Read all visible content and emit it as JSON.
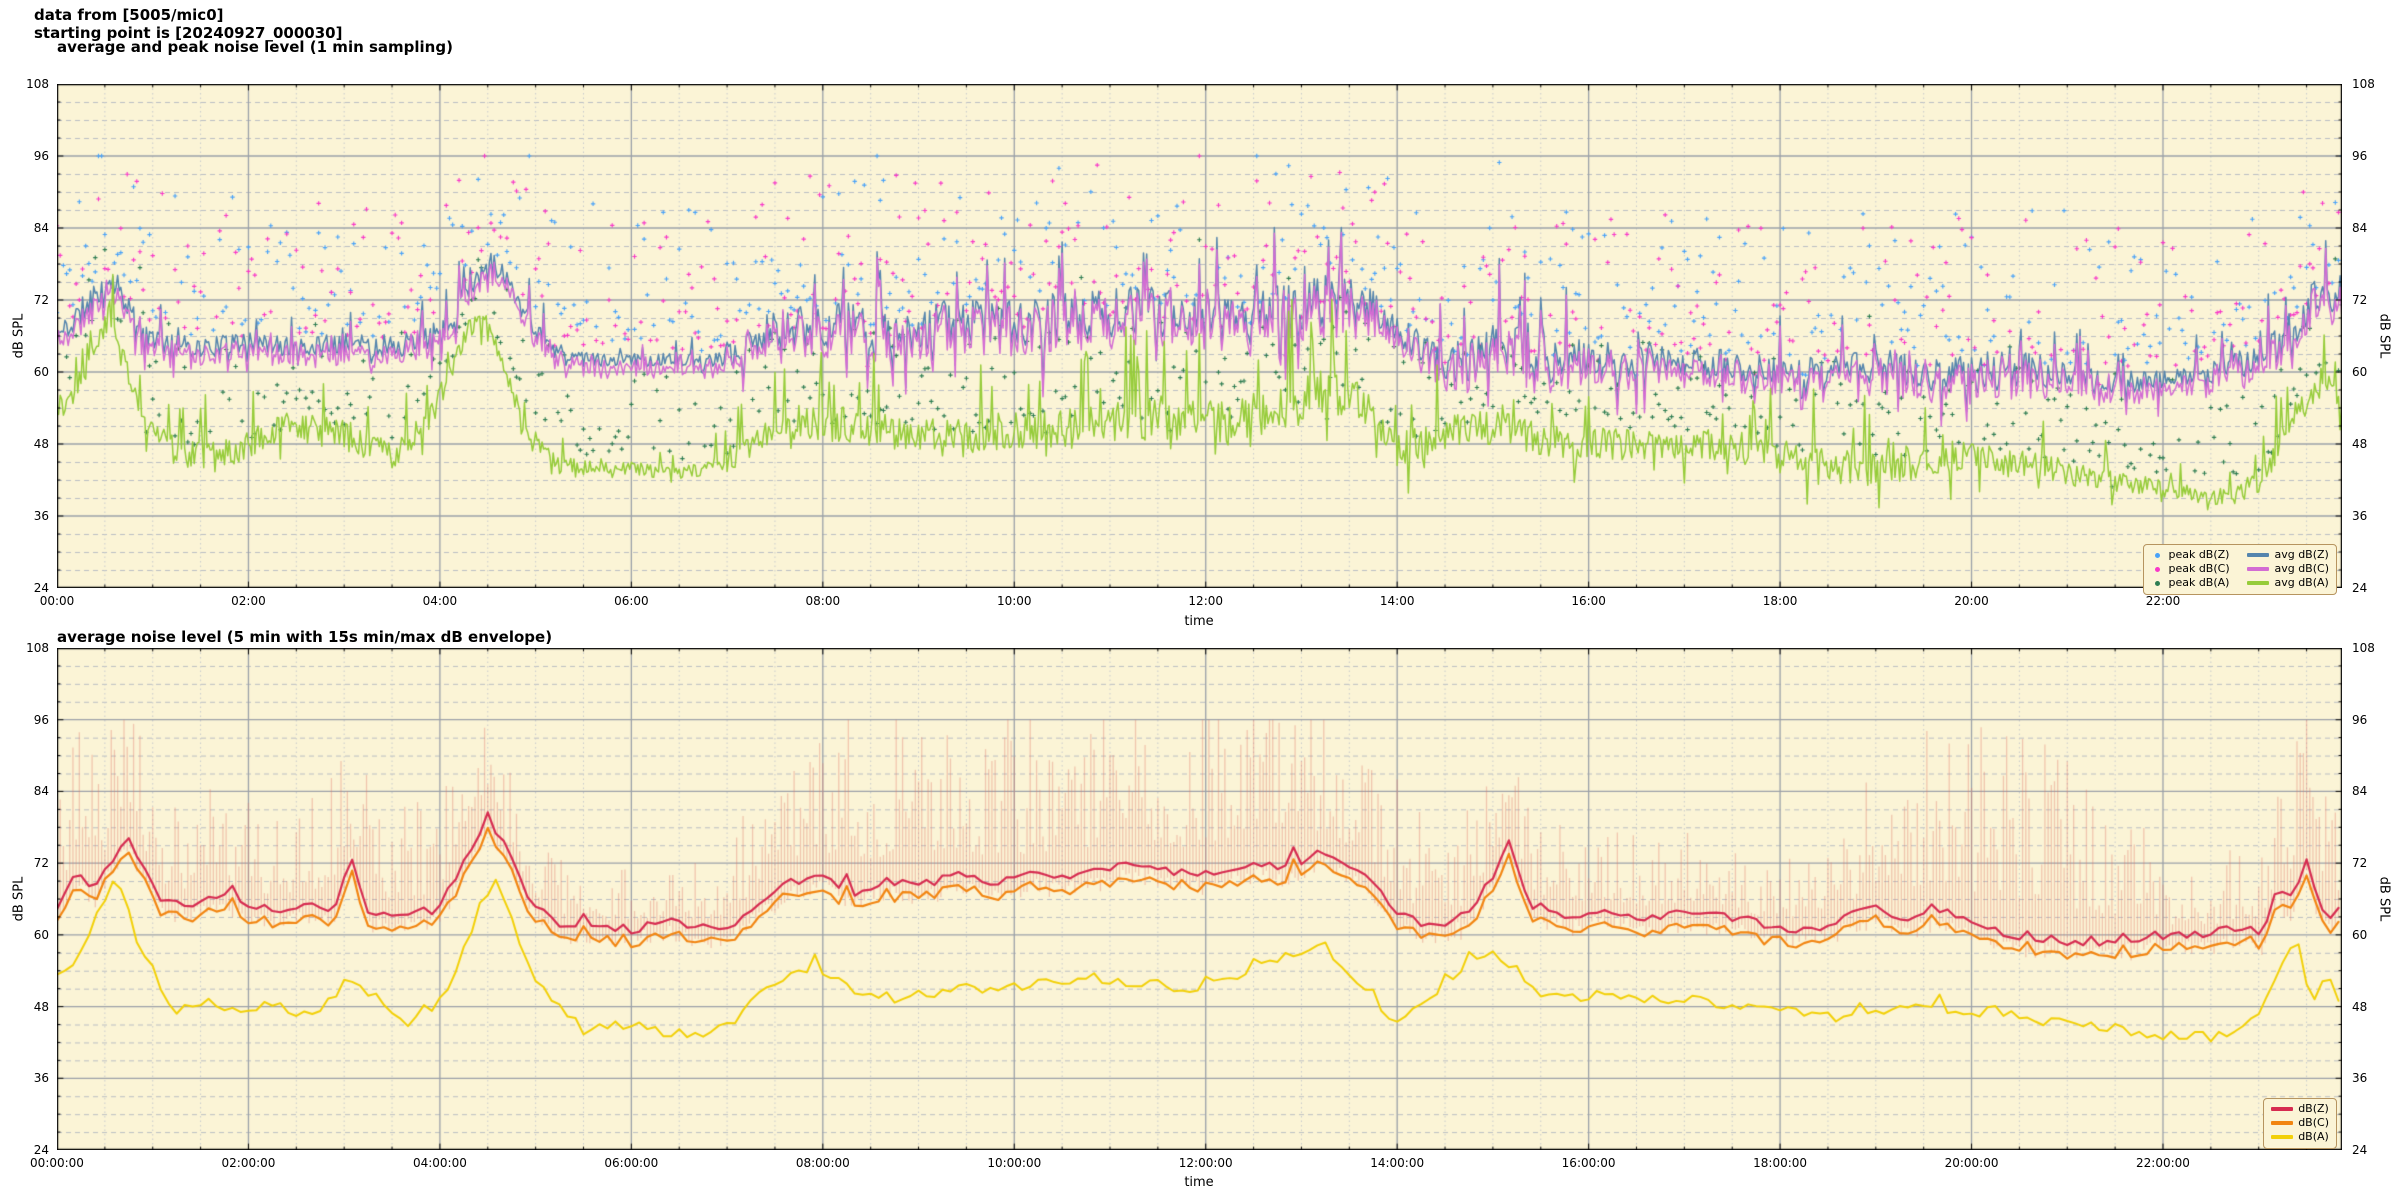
{
  "header": {
    "line1": "data from [5005/mic0]",
    "line2": "starting point is [20240927_000030]"
  },
  "colors": {
    "page_bg": "#ffffff",
    "plot_bg": "#fbf4d6",
    "grid_major": "#9aa0a8",
    "grid_minor": "#b9bdc2",
    "grid_minor_v": "#c6c9cc",
    "axis": "#000000",
    "legend_border": "#b6945f",
    "peak_z": "#49a2f8",
    "peak_c": "#f838c8",
    "peak_a": "#2e7d52",
    "avg_z": "#5585ad",
    "avg_c": "#d36cd3",
    "avg_a": "#96cc3a",
    "line2_z": "#d62b50",
    "line2_c": "#f28511",
    "line2_a": "#f2d008",
    "envelope": "#e07868"
  },
  "charts": [
    {
      "title": "average and peak noise level (1 min sampling)",
      "xlabel": "time",
      "ylabel_left": "dB SPL",
      "ylabel_right": "dB SPL",
      "xticks": [
        "00:00",
        "02:00",
        "04:00",
        "06:00",
        "08:00",
        "10:00",
        "12:00",
        "14:00",
        "16:00",
        "18:00",
        "20:00",
        "22:00"
      ],
      "yticks": [
        "24",
        "36",
        "48",
        "60",
        "72",
        "84",
        "96",
        "108"
      ],
      "legend_left": [
        {
          "label": "peak dB(Z)",
          "color_key": "peak_z"
        },
        {
          "label": "peak dB(C)",
          "color_key": "peak_c"
        },
        {
          "label": "peak dB(A)",
          "color_key": "peak_a"
        }
      ],
      "legend_right": [
        {
          "label": "avg dB(Z)",
          "color_key": "avg_z"
        },
        {
          "label": "avg dB(C)",
          "color_key": "avg_c"
        },
        {
          "label": "avg dB(A)",
          "color_key": "avg_a"
        }
      ]
    },
    {
      "title": "average noise level (5 min with 15s min/max dB envelope)",
      "xlabel": "time",
      "ylabel_left": "dB SPL",
      "ylabel_right": "dB SPL",
      "xticks": [
        "00:00:00",
        "02:00:00",
        "04:00:00",
        "06:00:00",
        "08:00:00",
        "10:00:00",
        "12:00:00",
        "14:00:00",
        "16:00:00",
        "18:00:00",
        "20:00:00",
        "22:00:00"
      ],
      "yticks": [
        "24",
        "36",
        "48",
        "60",
        "72",
        "84",
        "96",
        "108"
      ],
      "legend": [
        {
          "label": "dB(Z)",
          "color_key": "line2_z"
        },
        {
          "label": "dB(C)",
          "color_key": "line2_c"
        },
        {
          "label": "dB(A)",
          "color_key": "line2_a"
        }
      ]
    }
  ],
  "chart_data": [
    {
      "type": "line",
      "title": "average and peak noise level (1 min sampling)",
      "xlabel": "time",
      "ylabel": "dB SPL",
      "xlim_hours": [
        0,
        23.87
      ],
      "ylim": [
        24,
        108
      ],
      "ytick_values": [
        24,
        36,
        48,
        60,
        72,
        84,
        96,
        108
      ],
      "yminor_step": 3,
      "xtick_step_hours": 2,
      "xminor_step_hours": 0.5,
      "sampling_minutes": 1,
      "series": [
        {
          "name": "avg dB(Z)",
          "style": "line",
          "color_key": "avg_z",
          "t": [
            0,
            0.15,
            0.35,
            0.55,
            0.7,
            0.85,
            1.1,
            1.5,
            2.0,
            2.5,
            3.0,
            3.4,
            3.8,
            4.1,
            4.35,
            4.55,
            4.75,
            5.0,
            5.3,
            5.7,
            6.2,
            6.8,
            7.2,
            7.5,
            8.0,
            8.5,
            9.0,
            9.5,
            10.0,
            10.5,
            11.0,
            11.5,
            12.0,
            12.5,
            13.0,
            13.4,
            13.8,
            14.1,
            14.5,
            14.9,
            15.2,
            15.6,
            16.0,
            16.5,
            17.0,
            17.5,
            18.0,
            18.5,
            19.0,
            19.5,
            20.0,
            20.5,
            21.0,
            21.5,
            22.0,
            22.5,
            23.0,
            23.3,
            23.55,
            23.75,
            23.87
          ],
          "v": [
            66,
            68,
            72,
            76,
            73,
            67,
            65,
            64,
            65,
            64,
            65,
            64,
            65,
            68,
            75,
            79,
            74,
            67,
            63,
            62,
            62,
            62,
            64,
            67,
            68,
            67,
            68,
            68,
            68,
            69,
            70,
            70,
            70,
            70,
            71,
            72,
            70,
            66,
            61,
            63,
            64,
            62,
            62,
            62,
            62,
            61,
            60,
            60,
            61,
            60,
            60,
            61,
            59,
            58,
            59,
            60,
            62,
            66,
            72,
            71,
            73
          ],
          "noise_t": [
            0,
            0.7,
            1.2,
            3.0,
            4.3,
            4.8,
            5.3,
            6.8,
            7.4,
            8.5,
            12.0,
            13.6,
            14.2,
            15.0,
            16.0,
            18.0,
            19.0,
            20.2,
            21.2,
            22.2,
            23.0,
            23.5,
            23.87
          ],
          "noise_amp": [
            2.5,
            3,
            2,
            2,
            2.5,
            2.5,
            1.2,
            1.3,
            4.5,
            5,
            5,
            5.5,
            3,
            5.5,
            4,
            3,
            3.5,
            4.5,
            2.5,
            1.8,
            3,
            4.5,
            4
          ]
        },
        {
          "name": "avg dB(C)",
          "style": "line",
          "color_key": "avg_c",
          "delta_from": "avg dB(Z)",
          "delta": 1.6
        },
        {
          "name": "avg dB(A)",
          "style": "line",
          "color_key": "avg_a",
          "t": [
            0,
            0.15,
            0.35,
            0.55,
            0.7,
            0.9,
            1.2,
            1.6,
            2.0,
            2.4,
            2.8,
            3.1,
            3.5,
            3.9,
            4.15,
            4.4,
            4.6,
            4.85,
            5.2,
            5.6,
            6.0,
            6.5,
            7.0,
            7.4,
            7.8,
            8.3,
            8.8,
            9.3,
            9.8,
            10.3,
            10.8,
            11.3,
            11.8,
            12.3,
            12.8,
            13.2,
            13.6,
            14.0,
            14.4,
            14.8,
            15.2,
            15.7,
            16.2,
            16.8,
            17.4,
            18.0,
            18.6,
            19.2,
            19.8,
            20.3,
            20.8,
            21.3,
            21.8,
            22.3,
            22.7,
            23.05,
            23.35,
            23.6,
            23.8,
            23.87
          ],
          "v": [
            54,
            56,
            62,
            70,
            64,
            52,
            47,
            46,
            48,
            51,
            50,
            49,
            46,
            52,
            62,
            70,
            64,
            52,
            45,
            44,
            44,
            43,
            45,
            49,
            52,
            51,
            50,
            49,
            50,
            50,
            51,
            52,
            52,
            52,
            54,
            57,
            55,
            47,
            49,
            51,
            50,
            48,
            48,
            48,
            48,
            46,
            44,
            44,
            46,
            45,
            44,
            42,
            41,
            40,
            39,
            42,
            52,
            58,
            57,
            56
          ],
          "noise_t": [
            0,
            1,
            2,
            3,
            4,
            5,
            5.6,
            6.8,
            7.6,
            9,
            13,
            14,
            15,
            17,
            19,
            21,
            22.4,
            23.1,
            23.6,
            23.87
          ],
          "noise_amp": [
            2.5,
            3,
            3,
            3,
            2.5,
            2,
            1.2,
            1.5,
            3.5,
            3.5,
            4.5,
            3.5,
            3.5,
            3,
            3.5,
            2.5,
            1.5,
            2.5,
            3.5,
            3
          ]
        },
        {
          "name": "peak dB(Z)",
          "style": "scatter",
          "color_key": "peak_z",
          "offset_from": "avg dB(Z)",
          "offset_min": 3.5,
          "offset_max": 26,
          "ymax": 96
        },
        {
          "name": "peak dB(C)",
          "style": "scatter",
          "color_key": "peak_c",
          "offset_from": "avg dB(C)",
          "offset_min": 3.5,
          "offset_max": 26,
          "ymax": 96
        },
        {
          "name": "peak dB(A)",
          "style": "scatter",
          "color_key": "peak_a",
          "offset_from": "avg dB(A)",
          "offset_min": 3,
          "offset_max": 18,
          "ymax": 88
        }
      ]
    },
    {
      "type": "line",
      "title": "average noise level (5 min with 15s min/max dB envelope)",
      "xlabel": "time",
      "ylabel": "dB SPL",
      "xlim_hours": [
        0,
        23.87
      ],
      "ylim": [
        24,
        108
      ],
      "ytick_values": [
        24,
        36,
        48,
        60,
        72,
        84,
        96,
        108
      ],
      "yminor_step": 3,
      "xtick_step_hours": 2,
      "xminor_step_hours": 0.5,
      "sampling_minutes": 5,
      "series": [
        {
          "name": "dB(Z)",
          "style": "line",
          "color_key": "line2_z",
          "t": [
            0,
            0.2,
            0.4,
            0.55,
            0.72,
            0.9,
            1.1,
            1.4,
            1.7,
            2.0,
            2.3,
            2.6,
            2.9,
            3.07,
            3.25,
            3.6,
            3.9,
            4.1,
            4.3,
            4.5,
            4.7,
            4.95,
            5.2,
            5.6,
            6.0,
            6.4,
            6.8,
            7.1,
            7.4,
            7.7,
            8.0,
            8.3,
            8.6,
            9.0,
            9.4,
            9.8,
            10.2,
            10.6,
            11.0,
            11.4,
            11.8,
            12.2,
            12.6,
            12.9,
            13.15,
            13.4,
            13.7,
            14.0,
            14.3,
            14.7,
            15.0,
            15.15,
            15.4,
            15.8,
            16.2,
            16.6,
            17.0,
            17.4,
            17.8,
            18.2,
            18.6,
            19.0,
            19.3,
            19.7,
            20.1,
            20.5,
            21.0,
            21.5,
            22.0,
            22.4,
            22.8,
            23.05,
            23.2,
            23.35,
            23.5,
            23.65,
            23.8,
            23.87
          ],
          "v": [
            65,
            70,
            68,
            72,
            77,
            72,
            66,
            65,
            67,
            65,
            64,
            65,
            64,
            74,
            64,
            63,
            64,
            67,
            74,
            80,
            74,
            66,
            62,
            61,
            61,
            62,
            61,
            62,
            66,
            69,
            70,
            67,
            69,
            68,
            70,
            69,
            70,
            70,
            71,
            72,
            70,
            71,
            72,
            71,
            74,
            72,
            69,
            64,
            61,
            63,
            70,
            76,
            65,
            63,
            64,
            63,
            64,
            63,
            62,
            61,
            62,
            65,
            62,
            64,
            61,
            60,
            59,
            59,
            60,
            60,
            61,
            60,
            68,
            65,
            72,
            64,
            63,
            65
          ],
          "noise_amp_const": 0.8
        },
        {
          "name": "dB(C)",
          "style": "line",
          "color_key": "line2_c",
          "delta_from": "dB(Z)",
          "delta": 2.2
        },
        {
          "name": "dB(A)",
          "style": "line",
          "color_key": "line2_a",
          "t": [
            0,
            0.2,
            0.45,
            0.62,
            0.8,
            1.0,
            1.25,
            1.55,
            1.85,
            2.15,
            2.45,
            2.75,
            3.05,
            3.3,
            3.6,
            3.9,
            4.15,
            4.4,
            4.6,
            4.85,
            5.1,
            5.5,
            5.9,
            6.3,
            6.7,
            7.1,
            7.5,
            7.9,
            8.3,
            8.8,
            9.3,
            9.8,
            10.3,
            10.8,
            11.3,
            11.8,
            12.3,
            12.8,
            13.2,
            13.6,
            14.0,
            14.4,
            14.8,
            15.0,
            15.3,
            15.7,
            16.1,
            16.6,
            17.1,
            17.6,
            18.1,
            18.6,
            19.1,
            19.6,
            20.1,
            20.6,
            21.1,
            21.6,
            22.1,
            22.5,
            22.9,
            23.1,
            23.25,
            23.4,
            23.55,
            23.7,
            23.87
          ],
          "v": [
            53,
            56,
            64,
            70,
            61,
            52,
            47,
            49,
            47,
            48,
            46,
            47,
            53,
            49,
            45,
            47,
            53,
            64,
            70,
            57,
            50,
            44,
            45,
            44,
            43,
            46,
            52,
            54,
            51,
            49,
            51,
            51,
            52,
            53,
            52,
            51,
            53,
            56,
            58,
            52,
            45,
            50,
            56,
            58,
            52,
            49,
            50,
            49,
            49,
            48,
            47,
            46,
            47,
            48,
            47,
            46,
            45,
            44,
            43,
            43,
            45,
            50,
            55,
            59,
            49,
            54,
            48
          ],
          "noise_amp_const": 0.9
        },
        {
          "name": "15s min/max envelope",
          "style": "band",
          "color_key": "envelope",
          "alpha": 0.38,
          "base_from": "dB(Z)",
          "min_below": 3,
          "ymax": 96,
          "extra_t": [
            0,
            0.3,
            0.8,
            1.5,
            2.2,
            3.0,
            3.6,
            4.2,
            4.8,
            5.4,
            6.2,
            7.0,
            7.6,
            8.2,
            9.0,
            10.0,
            11.0,
            12.0,
            12.7,
            13.3,
            13.9,
            14.3,
            15.0,
            15.6,
            16.2,
            17.0,
            18.0,
            18.6,
            19.2,
            19.9,
            20.6,
            21.3,
            22.0,
            22.5,
            23.0,
            23.4,
            23.87
          ],
          "extra_v": [
            22,
            20,
            18,
            16,
            14,
            18,
            16,
            14,
            11,
            8,
            8,
            10,
            22,
            24,
            22,
            24,
            22,
            24,
            26,
            22,
            18,
            16,
            15,
            12,
            11,
            11,
            9,
            13,
            22,
            27,
            30,
            24,
            12,
            8,
            16,
            22,
            16
          ]
        }
      ]
    }
  ]
}
